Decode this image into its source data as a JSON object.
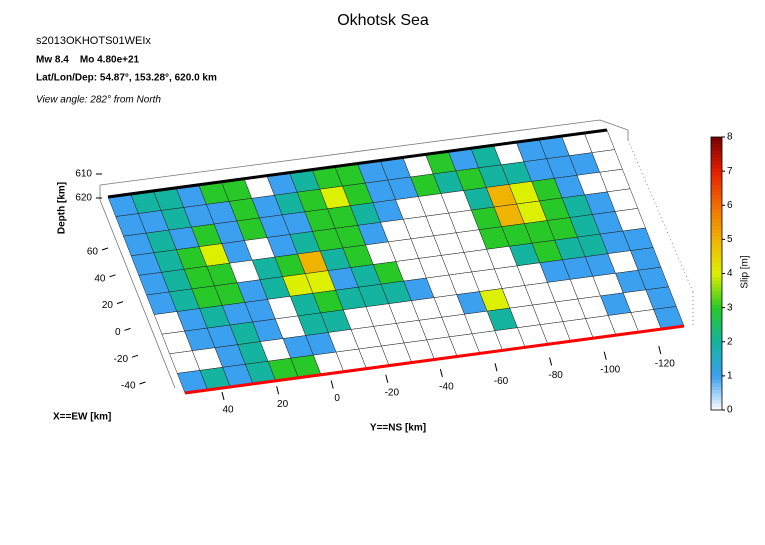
{
  "chart_data": {
    "type": "fault-slip",
    "title": "Okhotsk Sea",
    "subtitle": "s2013OKHOTS01WEIx",
    "annotations": [
      "Mw 8.4    Mo 4.80e+21",
      "Lat/Lon/Dep: 54.87°, 153.28°, 620.0 km",
      "View angle: 282° from North"
    ],
    "zlabel": "Depth [km]",
    "zticks": [
      610,
      620
    ],
    "xlabel": "X==EW [km]",
    "xticks": [
      60,
      40,
      20,
      0,
      -20,
      -40
    ],
    "ylabel": "Y==NS [km]",
    "yticks": [
      40,
      20,
      0,
      -20,
      -40,
      -60,
      -80,
      -100,
      -120
    ],
    "colorbar": {
      "label": "Slip [m]",
      "lim": [
        0,
        8
      ],
      "ticks": [
        0,
        1,
        2,
        3,
        4,
        5,
        6,
        7,
        8
      ],
      "colors": [
        "#ffffff",
        "#3ca0f0",
        "#14b4a0",
        "#28c828",
        "#dcf000",
        "#f0b400",
        "#f06e00",
        "#e61e00",
        "#780000"
      ]
    },
    "slip": [
      [
        1,
        2,
        2,
        1,
        3,
        3,
        0,
        1,
        2,
        3,
        3,
        1,
        1,
        0,
        3,
        1,
        2,
        0,
        1,
        1,
        0,
        0
      ],
      [
        1,
        1,
        2,
        1,
        1,
        3,
        1,
        2,
        3,
        4,
        3,
        1,
        1,
        3,
        2,
        3,
        2,
        2,
        1,
        1,
        1,
        0
      ],
      [
        1,
        2,
        1,
        3,
        1,
        3,
        1,
        1,
        3,
        3,
        2,
        1,
        0,
        0,
        0,
        2,
        5,
        4,
        3,
        1,
        0,
        0
      ],
      [
        1,
        2,
        3,
        4,
        1,
        0,
        1,
        2,
        3,
        3,
        1,
        0,
        0,
        0,
        0,
        3,
        5,
        4,
        3,
        2,
        1,
        0
      ],
      [
        1,
        2,
        3,
        3,
        0,
        2,
        3,
        5,
        2,
        3,
        0,
        0,
        0,
        0,
        0,
        3,
        3,
        3,
        3,
        2,
        1,
        0
      ],
      [
        1,
        2,
        3,
        3,
        1,
        2,
        4,
        4,
        1,
        2,
        3,
        0,
        0,
        0,
        0,
        0,
        2,
        3,
        2,
        2,
        1,
        1
      ],
      [
        0,
        1,
        2,
        1,
        1,
        0,
        2,
        3,
        2,
        2,
        2,
        1,
        0,
        0,
        0,
        0,
        0,
        1,
        1,
        1,
        0,
        1
      ],
      [
        0,
        1,
        1,
        2,
        1,
        0,
        2,
        2,
        0,
        0,
        0,
        0,
        0,
        1,
        4,
        0,
        0,
        0,
        0,
        0,
        1,
        1
      ],
      [
        0,
        0,
        1,
        2,
        0,
        1,
        1,
        0,
        0,
        0,
        0,
        0,
        0,
        0,
        2,
        0,
        0,
        0,
        0,
        1,
        0,
        1
      ],
      [
        1,
        2,
        1,
        2,
        3,
        3,
        0,
        0,
        0,
        0,
        0,
        0,
        0,
        0,
        0,
        0,
        0,
        0,
        0,
        0,
        0,
        1
      ]
    ]
  }
}
